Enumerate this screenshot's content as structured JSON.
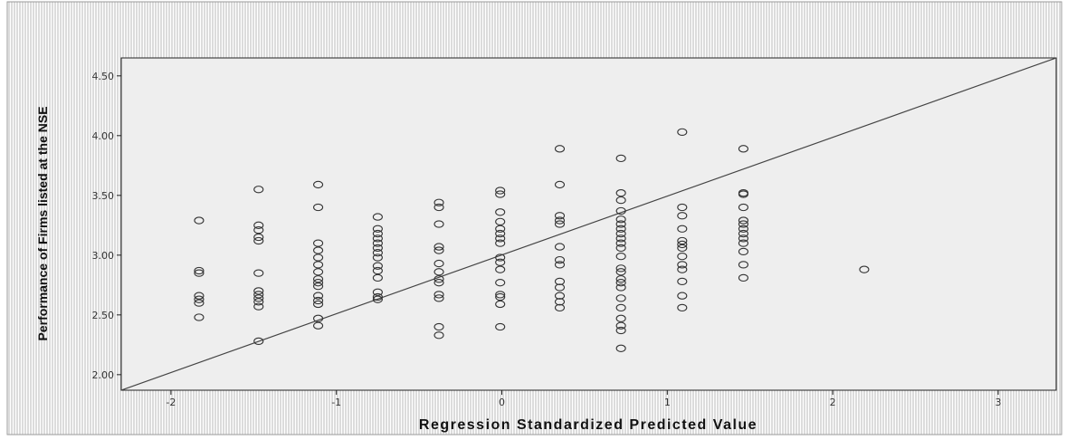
{
  "chart_data": {
    "type": "scatter",
    "title": "",
    "xlabel": "Regression Standardized Predicted Value",
    "ylabel": "Performance of Firms listed at the NSE",
    "xlim": [
      -2.3,
      3.35
    ],
    "ylim": [
      1.87,
      4.65
    ],
    "x_ticks": [
      -2,
      -1,
      0,
      1,
      2,
      3
    ],
    "x_tick_labels": [
      "-2",
      "-1",
      "0",
      "1",
      "2",
      "3"
    ],
    "y_ticks": [
      2.0,
      2.5,
      3.0,
      3.5,
      4.0,
      4.5
    ],
    "y_tick_labels": [
      "2.00",
      "2.50",
      "3.00",
      "3.50",
      "4.00",
      "4.50"
    ],
    "grid": false,
    "fit_line": {
      "x": [
        -2.3,
        3.35
      ],
      "y": [
        1.87,
        4.65
      ]
    },
    "colors": {
      "plot_background": "#eeeeee",
      "points": "#333333",
      "line": "#444444",
      "frame_hatch": "#b8b8b8"
    },
    "points": [
      {
        "x": -1.83,
        "y": 3.29
      },
      {
        "x": -1.83,
        "y": 2.87
      },
      {
        "x": -1.83,
        "y": 2.85
      },
      {
        "x": -1.83,
        "y": 2.66
      },
      {
        "x": -1.83,
        "y": 2.63
      },
      {
        "x": -1.83,
        "y": 2.6
      },
      {
        "x": -1.83,
        "y": 2.48
      },
      {
        "x": -1.47,
        "y": 3.55
      },
      {
        "x": -1.47,
        "y": 3.25
      },
      {
        "x": -1.47,
        "y": 3.21
      },
      {
        "x": -1.47,
        "y": 3.15
      },
      {
        "x": -1.47,
        "y": 3.12
      },
      {
        "x": -1.47,
        "y": 2.85
      },
      {
        "x": -1.47,
        "y": 2.7
      },
      {
        "x": -1.47,
        "y": 2.67
      },
      {
        "x": -1.47,
        "y": 2.64
      },
      {
        "x": -1.47,
        "y": 2.61
      },
      {
        "x": -1.47,
        "y": 2.57
      },
      {
        "x": -1.47,
        "y": 2.28
      },
      {
        "x": -1.11,
        "y": 3.59
      },
      {
        "x": -1.11,
        "y": 3.4
      },
      {
        "x": -1.11,
        "y": 3.1
      },
      {
        "x": -1.11,
        "y": 3.04
      },
      {
        "x": -1.11,
        "y": 2.98
      },
      {
        "x": -1.11,
        "y": 2.92
      },
      {
        "x": -1.11,
        "y": 2.86
      },
      {
        "x": -1.11,
        "y": 2.8
      },
      {
        "x": -1.11,
        "y": 2.77
      },
      {
        "x": -1.11,
        "y": 2.74
      },
      {
        "x": -1.11,
        "y": 2.66
      },
      {
        "x": -1.11,
        "y": 2.62
      },
      {
        "x": -1.11,
        "y": 2.59
      },
      {
        "x": -1.11,
        "y": 2.47
      },
      {
        "x": -1.11,
        "y": 2.41
      },
      {
        "x": -0.75,
        "y": 3.32
      },
      {
        "x": -0.75,
        "y": 3.22
      },
      {
        "x": -0.75,
        "y": 3.18
      },
      {
        "x": -0.75,
        "y": 3.14
      },
      {
        "x": -0.75,
        "y": 3.1
      },
      {
        "x": -0.75,
        "y": 3.06
      },
      {
        "x": -0.75,
        "y": 3.02
      },
      {
        "x": -0.75,
        "y": 2.98
      },
      {
        "x": -0.75,
        "y": 2.91
      },
      {
        "x": -0.75,
        "y": 2.87
      },
      {
        "x": -0.75,
        "y": 2.81
      },
      {
        "x": -0.75,
        "y": 2.69
      },
      {
        "x": -0.75,
        "y": 2.65
      },
      {
        "x": -0.75,
        "y": 2.63
      },
      {
        "x": -0.38,
        "y": 3.44
      },
      {
        "x": -0.38,
        "y": 3.4
      },
      {
        "x": -0.38,
        "y": 3.26
      },
      {
        "x": -0.38,
        "y": 3.07
      },
      {
        "x": -0.38,
        "y": 3.04
      },
      {
        "x": -0.38,
        "y": 2.93
      },
      {
        "x": -0.38,
        "y": 2.86
      },
      {
        "x": -0.38,
        "y": 2.8
      },
      {
        "x": -0.38,
        "y": 2.77
      },
      {
        "x": -0.38,
        "y": 2.67
      },
      {
        "x": -0.38,
        "y": 2.64
      },
      {
        "x": -0.38,
        "y": 2.4
      },
      {
        "x": -0.38,
        "y": 2.33
      },
      {
        "x": -0.01,
        "y": 3.54
      },
      {
        "x": -0.01,
        "y": 3.51
      },
      {
        "x": -0.01,
        "y": 3.36
      },
      {
        "x": -0.01,
        "y": 3.28
      },
      {
        "x": -0.01,
        "y": 3.22
      },
      {
        "x": -0.01,
        "y": 3.18
      },
      {
        "x": -0.01,
        "y": 3.14
      },
      {
        "x": -0.01,
        "y": 3.1
      },
      {
        "x": -0.01,
        "y": 2.98
      },
      {
        "x": -0.01,
        "y": 2.94
      },
      {
        "x": -0.01,
        "y": 2.88
      },
      {
        "x": -0.01,
        "y": 2.77
      },
      {
        "x": -0.01,
        "y": 2.67
      },
      {
        "x": -0.01,
        "y": 2.65
      },
      {
        "x": -0.01,
        "y": 2.59
      },
      {
        "x": -0.01,
        "y": 2.4
      },
      {
        "x": 0.35,
        "y": 3.89
      },
      {
        "x": 0.35,
        "y": 3.59
      },
      {
        "x": 0.35,
        "y": 3.33
      },
      {
        "x": 0.35,
        "y": 3.29
      },
      {
        "x": 0.35,
        "y": 3.26
      },
      {
        "x": 0.35,
        "y": 3.07
      },
      {
        "x": 0.35,
        "y": 2.96
      },
      {
        "x": 0.35,
        "y": 2.92
      },
      {
        "x": 0.35,
        "y": 2.78
      },
      {
        "x": 0.35,
        "y": 2.73
      },
      {
        "x": 0.35,
        "y": 2.66
      },
      {
        "x": 0.35,
        "y": 2.61
      },
      {
        "x": 0.35,
        "y": 2.56
      },
      {
        "x": 0.72,
        "y": 3.81
      },
      {
        "x": 0.72,
        "y": 3.52
      },
      {
        "x": 0.72,
        "y": 3.46
      },
      {
        "x": 0.72,
        "y": 3.37
      },
      {
        "x": 0.72,
        "y": 3.3
      },
      {
        "x": 0.72,
        "y": 3.26
      },
      {
        "x": 0.72,
        "y": 3.22
      },
      {
        "x": 0.72,
        "y": 3.18
      },
      {
        "x": 0.72,
        "y": 3.14
      },
      {
        "x": 0.72,
        "y": 3.1
      },
      {
        "x": 0.72,
        "y": 3.06
      },
      {
        "x": 0.72,
        "y": 2.99
      },
      {
        "x": 0.72,
        "y": 2.89
      },
      {
        "x": 0.72,
        "y": 2.86
      },
      {
        "x": 0.72,
        "y": 2.8
      },
      {
        "x": 0.72,
        "y": 2.77
      },
      {
        "x": 0.72,
        "y": 2.73
      },
      {
        "x": 0.72,
        "y": 2.64
      },
      {
        "x": 0.72,
        "y": 2.56
      },
      {
        "x": 0.72,
        "y": 2.47
      },
      {
        "x": 0.72,
        "y": 2.41
      },
      {
        "x": 0.72,
        "y": 2.37
      },
      {
        "x": 0.72,
        "y": 2.22
      },
      {
        "x": 1.09,
        "y": 4.03
      },
      {
        "x": 1.09,
        "y": 3.4
      },
      {
        "x": 1.09,
        "y": 3.33
      },
      {
        "x": 1.09,
        "y": 3.22
      },
      {
        "x": 1.09,
        "y": 3.12
      },
      {
        "x": 1.09,
        "y": 3.09
      },
      {
        "x": 1.09,
        "y": 3.06
      },
      {
        "x": 1.09,
        "y": 2.99
      },
      {
        "x": 1.09,
        "y": 2.92
      },
      {
        "x": 1.09,
        "y": 2.88
      },
      {
        "x": 1.09,
        "y": 2.78
      },
      {
        "x": 1.09,
        "y": 2.66
      },
      {
        "x": 1.09,
        "y": 2.56
      },
      {
        "x": 1.46,
        "y": 3.89
      },
      {
        "x": 1.46,
        "y": 3.52
      },
      {
        "x": 1.46,
        "y": 3.51
      },
      {
        "x": 1.46,
        "y": 3.4
      },
      {
        "x": 1.46,
        "y": 3.29
      },
      {
        "x": 1.46,
        "y": 3.26
      },
      {
        "x": 1.46,
        "y": 3.22
      },
      {
        "x": 1.46,
        "y": 3.18
      },
      {
        "x": 1.46,
        "y": 3.14
      },
      {
        "x": 1.46,
        "y": 3.1
      },
      {
        "x": 1.46,
        "y": 3.03
      },
      {
        "x": 1.46,
        "y": 2.92
      },
      {
        "x": 1.46,
        "y": 2.81
      },
      {
        "x": 2.19,
        "y": 2.88
      }
    ]
  }
}
